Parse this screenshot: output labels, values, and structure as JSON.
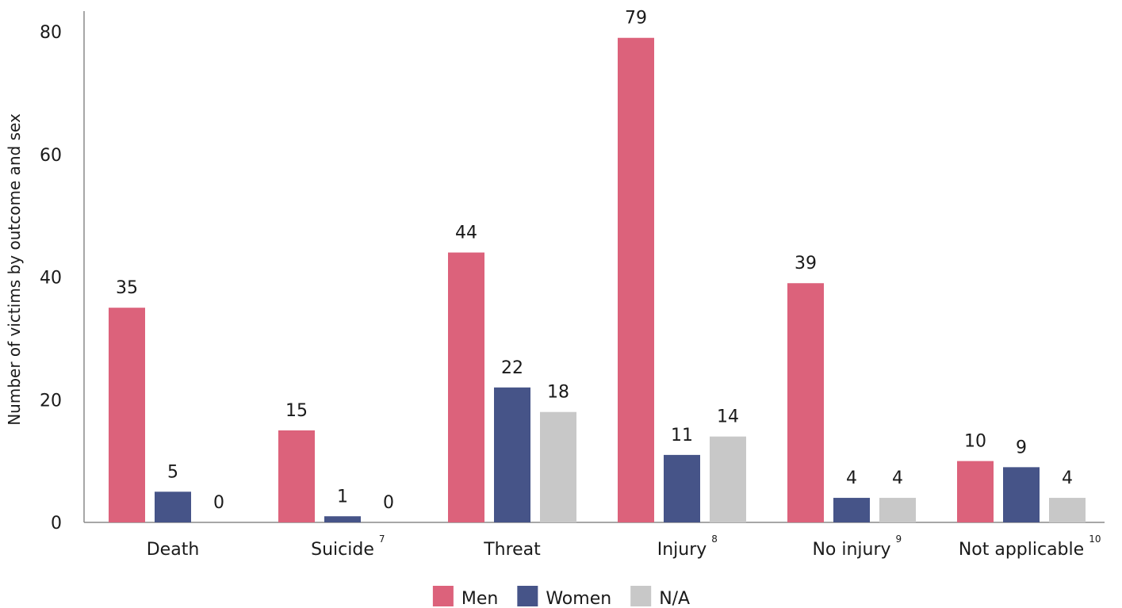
{
  "chart_data": {
    "type": "bar",
    "ylabel": "Number of victims by outcome and sex",
    "xlabel": "",
    "ylim": [
      0,
      82
    ],
    "yticks": [
      0,
      20,
      40,
      60,
      80
    ],
    "grid": false,
    "legend_position": "bottom",
    "categories": [
      "Death",
      "Suicide",
      "Threat",
      "Injury",
      "No injury",
      "Not applicable"
    ],
    "category_footnotes": [
      "",
      "7",
      "",
      "8",
      "9",
      "10"
    ],
    "series": [
      {
        "name": "Men",
        "color": "#dc627b",
        "values": [
          35,
          15,
          44,
          79,
          39,
          10
        ]
      },
      {
        "name": "Women",
        "color": "#465488",
        "values": [
          5,
          1,
          22,
          11,
          4,
          9
        ]
      },
      {
        "name": "N/A",
        "color": "#c8c8c8",
        "values": [
          0,
          0,
          18,
          14,
          4,
          4
        ]
      }
    ],
    "axis_color": "#8a8a8a"
  }
}
